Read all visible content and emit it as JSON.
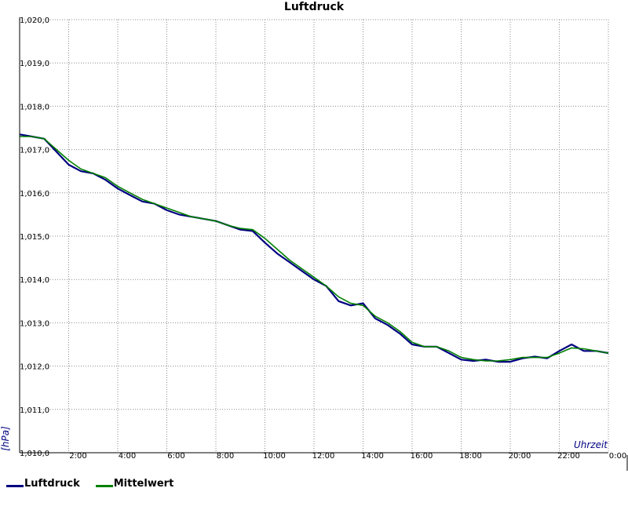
{
  "chart_data": {
    "type": "line",
    "title": "Luftdruck",
    "ylabel": "[hPa]",
    "xlabel": "Uhrzeit",
    "ylim": [
      1010,
      1020
    ],
    "xlim": [
      0,
      24
    ],
    "grid": true,
    "legend_position": "bottom-left",
    "y_ticks": [
      {
        "value": 1010,
        "label": "1,010,0"
      },
      {
        "value": 1011,
        "label": "1,011,0"
      },
      {
        "value": 1012,
        "label": "1,012,0"
      },
      {
        "value": 1013,
        "label": "1,013,0"
      },
      {
        "value": 1014,
        "label": "1,014,0"
      },
      {
        "value": 1015,
        "label": "1,015,0"
      },
      {
        "value": 1016,
        "label": "1,016,0"
      },
      {
        "value": 1017,
        "label": "1,017,0"
      },
      {
        "value": 1018,
        "label": "1,018,0"
      },
      {
        "value": 1019,
        "label": "1,019,0"
      },
      {
        "value": 1020,
        "label": "1,020,0"
      }
    ],
    "x_ticks": [
      {
        "value": 2,
        "label": "2:00"
      },
      {
        "value": 4,
        "label": "4:00"
      },
      {
        "value": 6,
        "label": "6:00"
      },
      {
        "value": 8,
        "label": "8:00"
      },
      {
        "value": 10,
        "label": "10:00"
      },
      {
        "value": 12,
        "label": "12:00"
      },
      {
        "value": 14,
        "label": "14:00"
      },
      {
        "value": 16,
        "label": "16:00"
      },
      {
        "value": 18,
        "label": "18:00"
      },
      {
        "value": 20,
        "label": "20:00"
      },
      {
        "value": 22,
        "label": "22:00"
      },
      {
        "value": 24,
        "label": "0:00"
      }
    ],
    "series": [
      {
        "name": "Luftdruck",
        "color": "#000080",
        "x": [
          0,
          0.5,
          1,
          1.5,
          2,
          2.5,
          3,
          3.5,
          4,
          4.5,
          5,
          5.5,
          6,
          6.5,
          7,
          7.5,
          8,
          8.5,
          9,
          9.5,
          10,
          10.5,
          11,
          11.5,
          12,
          12.5,
          13,
          13.5,
          14,
          14.5,
          15,
          15.5,
          16,
          16.5,
          17,
          17.5,
          18,
          18.5,
          19,
          19.5,
          20,
          20.5,
          21,
          21.5,
          22,
          22.5,
          23,
          23.5,
          24
        ],
        "y": [
          1017.35,
          1017.3,
          1017.25,
          1016.95,
          1016.65,
          1016.5,
          1016.45,
          1016.3,
          1016.1,
          1015.95,
          1015.8,
          1015.75,
          1015.6,
          1015.5,
          1015.45,
          1015.4,
          1015.35,
          1015.25,
          1015.15,
          1015.12,
          1014.85,
          1014.6,
          1014.4,
          1014.2,
          1014.0,
          1013.85,
          1013.5,
          1013.4,
          1013.45,
          1013.1,
          1012.95,
          1012.75,
          1012.5,
          1012.45,
          1012.45,
          1012.3,
          1012.15,
          1012.12,
          1012.15,
          1012.1,
          1012.1,
          1012.18,
          1012.22,
          1012.18,
          1012.35,
          1012.5,
          1012.35,
          1012.35,
          1012.3
        ]
      },
      {
        "name": "Mittelwert",
        "color": "#008000",
        "x": [
          0,
          0.5,
          1,
          1.5,
          2,
          2.5,
          3,
          3.5,
          4,
          4.5,
          5,
          5.5,
          6,
          6.5,
          7,
          7.5,
          8,
          8.5,
          9,
          9.5,
          10,
          10.5,
          11,
          11.5,
          12,
          12.5,
          13,
          13.5,
          14,
          14.5,
          15,
          15.5,
          16,
          16.5,
          17,
          17.5,
          18,
          18.5,
          19,
          19.5,
          20,
          20.5,
          21,
          21.5,
          22,
          22.5,
          23,
          23.5,
          24
        ],
        "y": [
          1017.3,
          1017.3,
          1017.25,
          1017.0,
          1016.75,
          1016.55,
          1016.45,
          1016.35,
          1016.15,
          1016.0,
          1015.85,
          1015.75,
          1015.65,
          1015.55,
          1015.45,
          1015.4,
          1015.35,
          1015.25,
          1015.18,
          1015.15,
          1014.95,
          1014.7,
          1014.45,
          1014.25,
          1014.05,
          1013.85,
          1013.6,
          1013.45,
          1013.4,
          1013.15,
          1013.0,
          1012.8,
          1012.55,
          1012.45,
          1012.45,
          1012.35,
          1012.2,
          1012.15,
          1012.12,
          1012.12,
          1012.15,
          1012.2,
          1012.2,
          1012.2,
          1012.3,
          1012.42,
          1012.4,
          1012.35,
          1012.3
        ]
      }
    ]
  }
}
